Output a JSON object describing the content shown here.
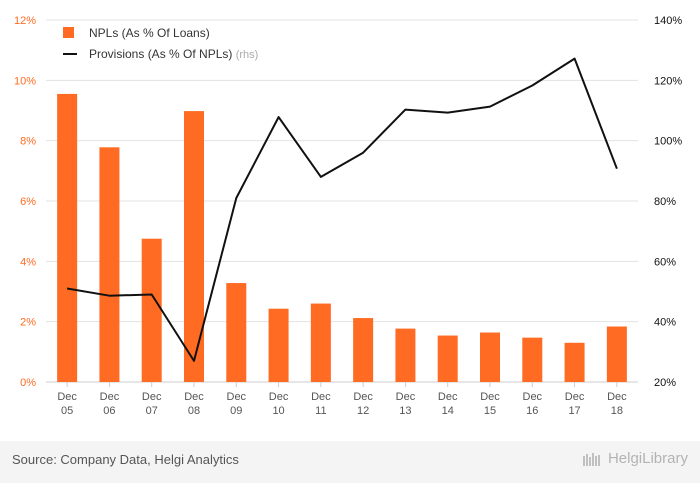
{
  "chart_data": {
    "type": "bar+line",
    "categories": [
      "Dec 05",
      "Dec 06",
      "Dec 07",
      "Dec 08",
      "Dec 09",
      "Dec 10",
      "Dec 11",
      "Dec 12",
      "Dec 13",
      "Dec 14",
      "Dec 15",
      "Dec 16",
      "Dec 17",
      "Dec 18"
    ],
    "category_lines": [
      [
        "Dec",
        "05"
      ],
      [
        "Dec",
        "06"
      ],
      [
        "Dec",
        "07"
      ],
      [
        "Dec",
        "08"
      ],
      [
        "Dec",
        "09"
      ],
      [
        "Dec",
        "10"
      ],
      [
        "Dec",
        "11"
      ],
      [
        "Dec",
        "12"
      ],
      [
        "Dec",
        "13"
      ],
      [
        "Dec",
        "14"
      ],
      [
        "Dec",
        "15"
      ],
      [
        "Dec",
        "16"
      ],
      [
        "Dec",
        "17"
      ],
      [
        "Dec",
        "18"
      ]
    ],
    "series": [
      {
        "name": "NPLs (As % Of Loans)",
        "kind": "bar",
        "axis": "left",
        "color": "#ff6b23",
        "values": [
          9.55,
          7.78,
          4.75,
          8.98,
          3.28,
          2.43,
          2.6,
          2.12,
          1.77,
          1.54,
          1.64,
          1.47,
          1.3,
          1.84
        ]
      },
      {
        "name": "Provisions (As % Of NPLs)",
        "name_suffix": "(rhs)",
        "kind": "line",
        "axis": "right",
        "color": "#111111",
        "values": [
          51.0,
          48.6,
          49.0,
          27.0,
          81.0,
          107.8,
          88.0,
          96.0,
          110.3,
          109.3,
          111.3,
          118.3,
          127.2,
          90.7
        ]
      }
    ],
    "y_left": {
      "min": 0,
      "max": 12,
      "ticks": [
        "0%",
        "2%",
        "4%",
        "6%",
        "8%",
        "10%",
        "12%"
      ],
      "tick_values": [
        0,
        2,
        4,
        6,
        8,
        10,
        12
      ]
    },
    "y_right": {
      "min": 20,
      "max": 140,
      "ticks": [
        "20%",
        "40%",
        "60%",
        "80%",
        "100%",
        "120%",
        "140%"
      ],
      "tick_values": [
        20,
        40,
        60,
        80,
        100,
        120,
        140
      ]
    },
    "grid": true,
    "legend_position": "top-left",
    "tick_color": "#ff6b23"
  },
  "footer": {
    "source": "Source: Company Data, Helgi Analytics",
    "logo_text": "HelgiLibrary"
  }
}
